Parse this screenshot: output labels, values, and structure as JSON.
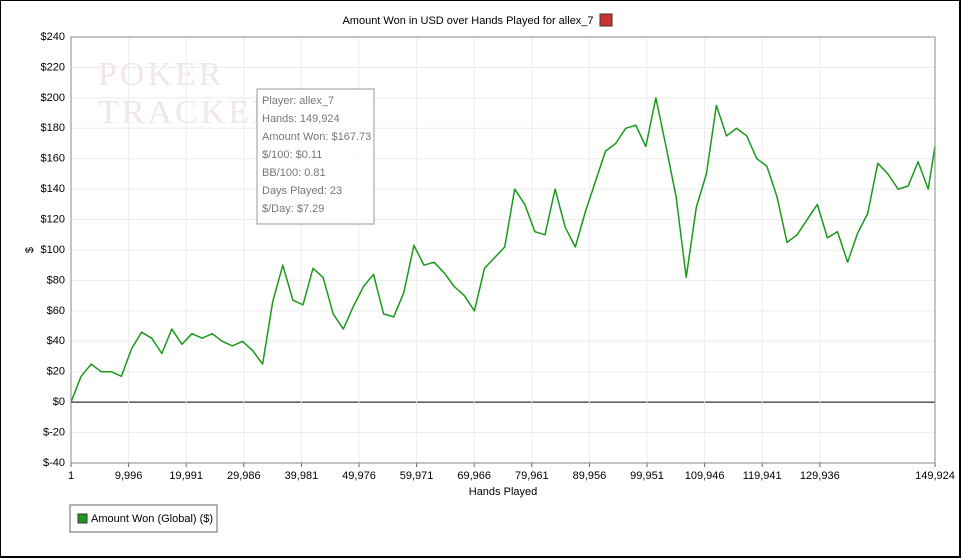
{
  "chart_data": {
    "type": "line",
    "title": "Amount Won in USD over Hands Played for allex_7",
    "x_label": "Hands Played",
    "y_label": "$",
    "watermark": [
      "POKER",
      "TRACKER"
    ],
    "tooltip": [
      "Player: allex_7",
      "Hands: 149,924",
      "Amount Won: $167.73",
      "$/100: $0.11",
      "BB/100: 0.81",
      "Days Played: 23",
      "$/Day: $7.29"
    ],
    "x": [
      1,
      1750,
      3500,
      5250,
      7000,
      8750,
      10500,
      12250,
      14000,
      15750,
      17500,
      19250,
      21000,
      22750,
      24500,
      26250,
      28000,
      29750,
      31500,
      33250,
      35000,
      36750,
      38500,
      40250,
      42000,
      43750,
      45500,
      47250,
      49000,
      50750,
      52500,
      54250,
      56000,
      57750,
      59500,
      61250,
      63000,
      64750,
      66500,
      68250,
      70000,
      71750,
      73500,
      75250,
      77000,
      78750,
      80500,
      82250,
      84000,
      85750,
      87500,
      89250,
      91000,
      92750,
      94500,
      96250,
      98000,
      99750,
      101500,
      103250,
      105000,
      106750,
      108500,
      110250,
      112000,
      113750,
      115500,
      117250,
      119000,
      120750,
      122500,
      124250,
      126000,
      127750,
      129500,
      131250,
      133000,
      134750,
      136500,
      138250,
      140000,
      141750,
      143500,
      145250,
      147000,
      148750,
      149924
    ],
    "series": [
      {
        "name": "Amount Won (Global) ($)",
        "color": "#1a9a1a",
        "values": [
          0,
          17,
          25,
          20,
          20,
          17,
          35,
          46,
          42,
          32,
          48,
          38,
          45,
          42,
          45,
          40,
          37,
          40,
          34,
          25,
          66,
          90,
          67,
          64,
          88,
          82,
          58,
          48,
          63,
          76,
          84,
          58,
          56,
          72,
          103,
          90,
          92,
          85,
          76,
          70,
          60,
          88,
          95,
          102,
          140,
          130,
          112,
          110,
          140,
          115,
          102,
          125,
          145,
          165,
          170,
          180,
          182,
          168,
          200,
          168,
          135,
          82,
          128,
          150,
          195,
          175,
          180,
          175,
          160,
          155,
          135,
          105,
          110,
          120,
          130,
          108,
          112,
          92,
          111,
          124,
          157,
          150,
          140,
          142,
          158,
          140,
          168
        ]
      }
    ],
    "xlim": [
      1,
      149924
    ],
    "xticks": [
      1,
      {
        "value": 9996,
        "label": "9,996"
      },
      {
        "value": 19991,
        "label": "19,991"
      },
      {
        "value": 29986,
        "label": "29,986"
      },
      {
        "value": 39981,
        "label": "39,981"
      },
      {
        "value": 49976,
        "label": "49,976"
      },
      {
        "value": 59971,
        "label": "59,971"
      },
      {
        "value": 69966,
        "label": "69,966"
      },
      {
        "value": 79961,
        "label": "79,961"
      },
      {
        "value": 89956,
        "label": "89,956"
      },
      {
        "value": 99951,
        "label": "99,951"
      },
      {
        "value": 109946,
        "label": "109,946"
      },
      {
        "value": 119941,
        "label": "119,941"
      },
      {
        "value": 129936,
        "label": "129,936"
      },
      {
        "value": 149924,
        "label": "149,924"
      }
    ],
    "ylim": [
      -40,
      240
    ],
    "yticks": [
      {
        "value": -40,
        "label": "$-40"
      },
      {
        "value": -20,
        "label": "$-20"
      },
      {
        "value": 0,
        "label": "$0"
      },
      {
        "value": 20,
        "label": "$20"
      },
      {
        "value": 40,
        "label": "$40"
      },
      {
        "value": 60,
        "label": "$60"
      },
      {
        "value": 80,
        "label": "$80"
      },
      {
        "value": 100,
        "label": "$100"
      },
      {
        "value": 120,
        "label": "$120"
      },
      {
        "value": 140,
        "label": "$140"
      },
      {
        "value": 160,
        "label": "$160"
      },
      {
        "value": 180,
        "label": "$180"
      },
      {
        "value": 200,
        "label": "$200"
      },
      {
        "value": 220,
        "label": "$220"
      },
      {
        "value": 240,
        "label": "$240"
      }
    ],
    "grid": true
  }
}
